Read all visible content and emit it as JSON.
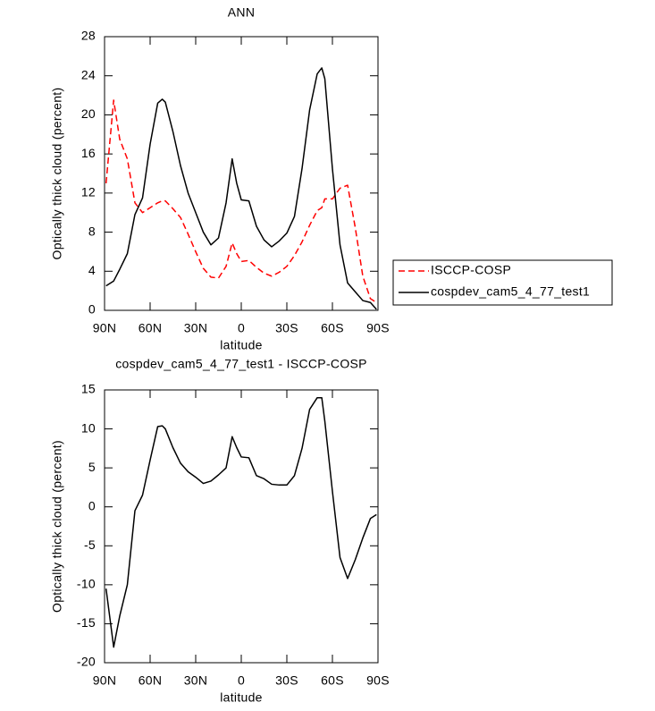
{
  "chart_data": [
    {
      "type": "line",
      "title": "ANN",
      "xlabel": "latitude",
      "ylabel": "Optically thick cloud (percent)",
      "x": [
        89,
        84,
        80,
        75,
        70,
        65,
        60,
        55,
        52,
        50,
        45,
        40,
        35,
        30,
        25,
        20,
        15,
        10,
        6,
        3,
        0,
        -5,
        -10,
        -15,
        -20,
        -25,
        -30,
        -35,
        -40,
        -45,
        -50,
        -53,
        -55,
        -60,
        -65,
        -70,
        -75,
        -80,
        -85,
        -89
      ],
      "series": [
        {
          "name": "ISCCP-COSP",
          "color": "#ff0000",
          "linestyle": "dashed",
          "values": [
            13,
            21.5,
            17.5,
            15.5,
            11,
            10,
            10.5,
            11,
            11.2,
            11.2,
            10.4,
            9.5,
            7.8,
            6,
            4.3,
            3.4,
            3.3,
            4.5,
            6.9,
            5.8,
            5,
            5.1,
            4.4,
            3.8,
            3.5,
            3.9,
            4.5,
            5.6,
            7,
            8.7,
            10.2,
            10.5,
            11.4,
            11.4,
            12.5,
            12.8,
            8.5,
            3.5,
            1.2,
            0.8
          ]
        },
        {
          "name": "cospdev_cam5_4_77_test1",
          "color": "#000000",
          "linestyle": "solid",
          "values": [
            2.5,
            3,
            4.2,
            5.8,
            9.8,
            11.5,
            17,
            21.2,
            21.6,
            21.3,
            18.3,
            14.8,
            12,
            10,
            8,
            6.7,
            7.4,
            11,
            15.5,
            13,
            11.3,
            11.2,
            8.6,
            7.2,
            6.5,
            7.1,
            7.9,
            9.6,
            14.5,
            20.5,
            24.2,
            24.8,
            23.7,
            14.5,
            6.7,
            2.8,
            1.9,
            1,
            0.8,
            0.1
          ]
        }
      ],
      "xlim": [
        90,
        -90
      ],
      "xticks": [
        {
          "value": 90,
          "label": "90N"
        },
        {
          "value": 60,
          "label": "60N"
        },
        {
          "value": 30,
          "label": "30N"
        },
        0,
        {
          "value": -30,
          "label": "30S"
        },
        {
          "value": -60,
          "label": "60S"
        },
        {
          "value": -90,
          "label": "90S"
        }
      ],
      "ylim": [
        0,
        28
      ],
      "yticks": [
        0,
        4,
        8,
        12,
        16,
        20,
        24,
        28
      ],
      "grid": false,
      "legend": "right"
    },
    {
      "type": "line",
      "title": "cospdev_cam5_4_77_test1 - ISCCP-COSP",
      "xlabel": "latitude",
      "ylabel": "Optically thick cloud (percent)",
      "x": [
        89,
        84,
        80,
        75,
        70,
        65,
        60,
        55,
        52,
        50,
        45,
        40,
        35,
        30,
        25,
        20,
        15,
        10,
        6,
        3,
        0,
        -5,
        -10,
        -15,
        -20,
        -25,
        -30,
        -35,
        -40,
        -45,
        -50,
        -53,
        -55,
        -60,
        -65,
        -70,
        -75,
        -80,
        -85,
        -89
      ],
      "series": [
        {
          "color": "#000000",
          "linestyle": "solid",
          "values": [
            -10.5,
            -18,
            -14,
            -10,
            -0.5,
            1.5,
            6,
            10.3,
            10.4,
            10,
            7.6,
            5.6,
            4.5,
            3.8,
            3,
            3.3,
            4.1,
            5,
            9,
            7.6,
            6.4,
            6.3,
            4,
            3.6,
            2.9,
            2.8,
            2.8,
            4,
            7.5,
            12.5,
            14,
            14,
            11,
            2,
            -6.5,
            -9.2,
            -6.8,
            -4,
            -1.5,
            -1
          ]
        }
      ],
      "xlim": [
        90,
        -90
      ],
      "xticks": [
        {
          "value": 90,
          "label": "90N"
        },
        {
          "value": 60,
          "label": "60N"
        },
        {
          "value": 30,
          "label": "30N"
        },
        0,
        {
          "value": -30,
          "label": "30S"
        },
        {
          "value": -60,
          "label": "60S"
        },
        {
          "value": -90,
          "label": "90S"
        }
      ],
      "ylim": [
        -20,
        15
      ],
      "yticks": [
        -20,
        -15,
        -10,
        -5,
        0,
        5,
        10,
        15
      ],
      "grid": false
    }
  ]
}
